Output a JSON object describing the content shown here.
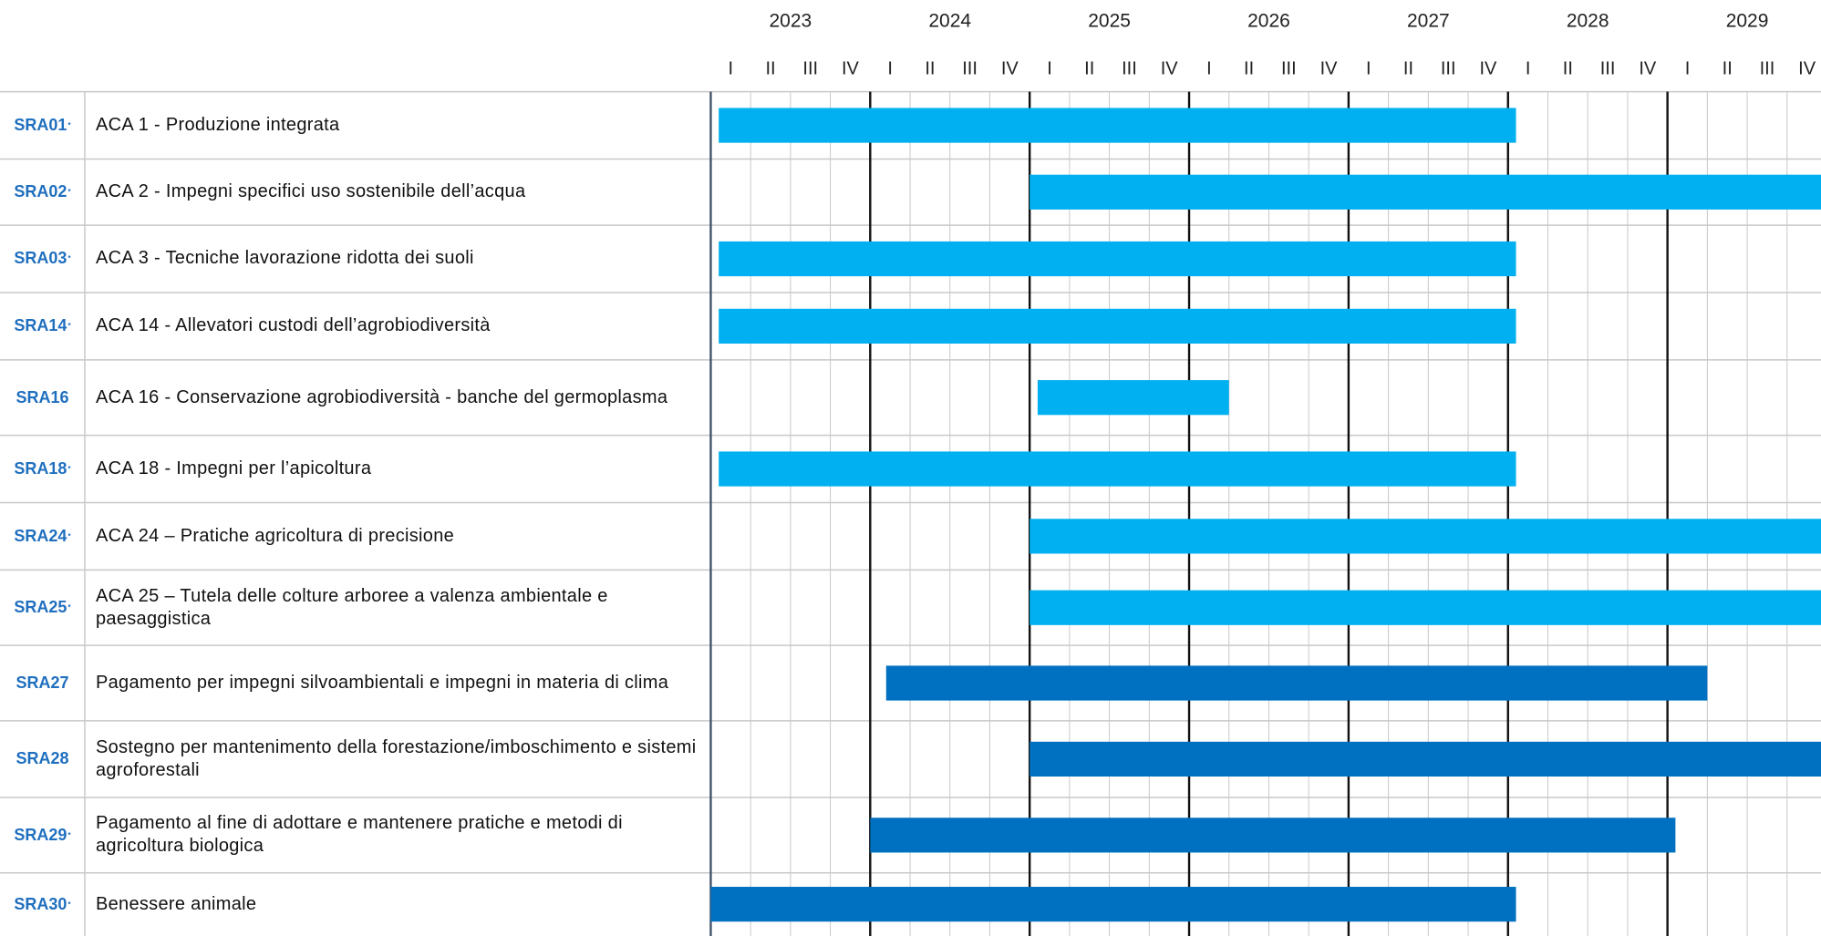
{
  "chart_data": {
    "type": "gantt",
    "years": [
      2023,
      2024,
      2025,
      2026,
      2027,
      2028,
      2029
    ],
    "quarters": [
      "I",
      "II",
      "III",
      "IV"
    ],
    "xlim": [
      2023,
      2030
    ],
    "tasks": [
      {
        "code": "SRA01",
        "mark": "*",
        "label": "ACA 1 - Produzione integrata",
        "start": 2023.05,
        "end": 2028.05,
        "color": "#00b0f0"
      },
      {
        "code": "SRA02",
        "mark": "*",
        "label": "ACA 2 - Impegni specifici uso sostenibile dell’acqua",
        "start": 2025.0,
        "end": 2030,
        "color": "#00b0f0"
      },
      {
        "code": "SRA03",
        "mark": "*",
        "label": "ACA 3 - Tecniche lavorazione ridotta dei suoli",
        "start": 2023.05,
        "end": 2028.05,
        "color": "#00b0f0"
      },
      {
        "code": "SRA14",
        "mark": "*",
        "label": "ACA 14 - Allevatori custodi dell’agrobiodiversità",
        "start": 2023.05,
        "end": 2028.05,
        "color": "#00b0f0"
      },
      {
        "code": "SRA16",
        "label": "ACA 16 - Conservazione agrobiodiversità - banche del germoplasma",
        "start": 2025.05,
        "end": 2026.25,
        "color": "#00b0f0"
      },
      {
        "code": "SRA18",
        "mark": "*",
        "label": "ACA 18 - Impegni per l’apicoltura",
        "start": 2023.05,
        "end": 2028.05,
        "color": "#00b0f0"
      },
      {
        "code": "SRA24",
        "mark": "*",
        "label": "ACA 24 – Pratiche agricoltura di precisione",
        "start": 2025.0,
        "end": 2030,
        "color": "#00b0f0"
      },
      {
        "code": "SRA25",
        "mark": "*",
        "label": "ACA 25 – Tutela delle colture arboree a valenza ambientale e paesaggistica",
        "start": 2025.0,
        "end": 2030,
        "color": "#00b0f0"
      },
      {
        "code": "SRA27",
        "label": "Pagamento per impegni silvoambientali e impegni in materia di clima",
        "start": 2024.1,
        "end": 2029.25,
        "color": "#0070c0"
      },
      {
        "code": "SRA28",
        "label": "Sostegno per mantenimento della forestazione/imboschimento e sistemi agroforestali",
        "start": 2025.0,
        "end": 2030,
        "color": "#0070c0"
      },
      {
        "code": "SRA29",
        "mark": "*",
        "label": "Pagamento al fine di adottare e mantenere pratiche e metodi di agricoltura biologica",
        "start": 2024.0,
        "end": 2029.05,
        "color": "#0070c0"
      },
      {
        "code": "SRA30",
        "mark": "*",
        "label": "Benessere animale",
        "start": 2023.0,
        "end": 2028.05,
        "color": "#0070c0"
      }
    ]
  }
}
